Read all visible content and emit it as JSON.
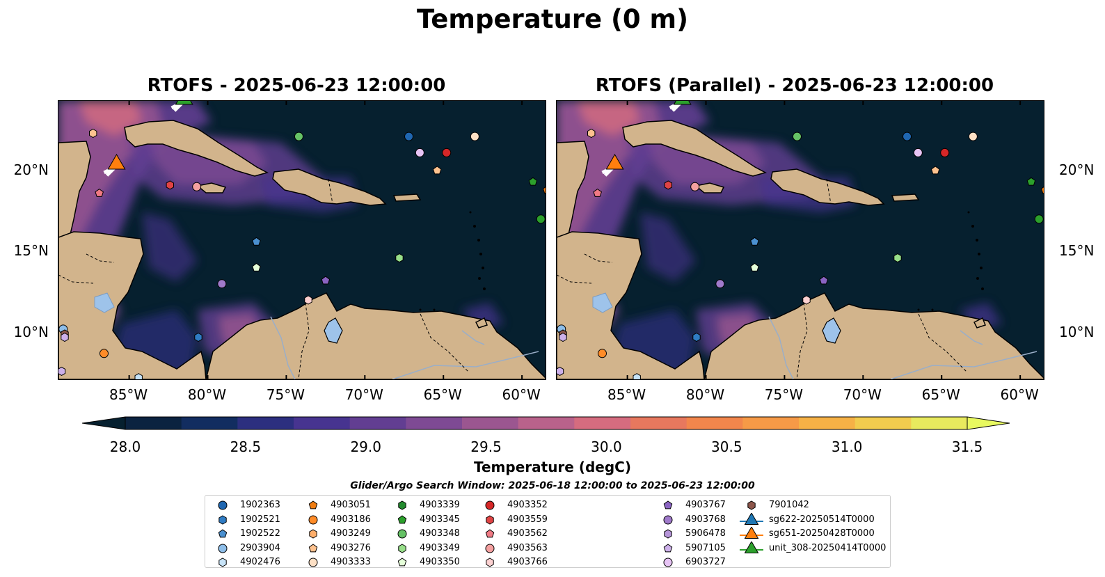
{
  "suptitle": "Temperature (0 m)",
  "panels": [
    {
      "title": "RTOFS - 2025-06-23 12:00:00"
    },
    {
      "title": "RTOFS (Parallel) - 2025-06-23 12:00:00"
    }
  ],
  "lon_ticks": [
    "85°W",
    "80°W",
    "75°W",
    "70°W",
    "65°W",
    "60°W"
  ],
  "lat_ticks": [
    "20°N",
    "15°N",
    "10°N"
  ],
  "colorbar": {
    "label": "Temperature (degC)",
    "ticks": [
      "28.0",
      "28.5",
      "29.0",
      "29.5",
      "30.0",
      "30.5",
      "31.0",
      "31.5"
    ],
    "colors": [
      "#0b2340",
      "#122d60",
      "#2c2f7f",
      "#473490",
      "#623e92",
      "#7e4a94",
      "#9b5690",
      "#b9628b",
      "#d56c7f",
      "#e7785e",
      "#f2864c",
      "#f69a47",
      "#f6b146",
      "#f2cc4e",
      "#e8ea5e"
    ],
    "under_color": "#06202f",
    "over_color": "#e8f960"
  },
  "search_window": "Glider/Argo Search Window: 2025-06-18 12:00:00 to 2025-06-23 12:00:00",
  "legend": [
    {
      "label": "1902363",
      "color": "#1f66b0",
      "marker": "circle"
    },
    {
      "label": "1902521",
      "color": "#2f7cc4",
      "marker": "hexagon"
    },
    {
      "label": "1902522",
      "color": "#4a90d0",
      "marker": "pentagon"
    },
    {
      "label": "2903904",
      "color": "#8dbde8",
      "marker": "circle"
    },
    {
      "label": "4902476",
      "color": "#c7e3f7",
      "marker": "hexagon"
    },
    {
      "label": "4903051",
      "color": "#f07d12",
      "marker": "pentagon"
    },
    {
      "label": "4903186",
      "color": "#ff8c28",
      "marker": "circle"
    },
    {
      "label": "4903249",
      "color": "#fdae6b",
      "marker": "hexagon"
    },
    {
      "label": "4903276",
      "color": "#fdc28f",
      "marker": "pentagon"
    },
    {
      "label": "4903333",
      "color": "#fde0c5",
      "marker": "circle"
    },
    {
      "label": "4903339",
      "color": "#238b2e",
      "marker": "hexagon"
    },
    {
      "label": "4903345",
      "color": "#2ca02c",
      "marker": "pentagon"
    },
    {
      "label": "4903348",
      "color": "#66c266",
      "marker": "circle"
    },
    {
      "label": "4903349",
      "color": "#98df8a",
      "marker": "hexagon"
    },
    {
      "label": "4903350",
      "color": "#e5ffd9",
      "marker": "pentagon"
    },
    {
      "label": "4903352",
      "color": "#d62728",
      "marker": "circle"
    },
    {
      "label": "4903559",
      "color": "#e04344",
      "marker": "hexagon"
    },
    {
      "label": "4903562",
      "color": "#f07a84",
      "marker": "pentagon"
    },
    {
      "label": "4903563",
      "color": "#f4a0a0",
      "marker": "circle"
    },
    {
      "label": "4903766",
      "color": "#fcd1d1",
      "marker": "hexagon"
    },
    {
      "label": "4903767",
      "color": "#8a63c2",
      "marker": "pentagon"
    },
    {
      "label": "4903768",
      "color": "#a07acb",
      "marker": "circle"
    },
    {
      "label": "5906478",
      "color": "#b695d9",
      "marker": "hexagon"
    },
    {
      "label": "5907105",
      "color": "#cdb0ea",
      "marker": "pentagon"
    },
    {
      "label": "6903727",
      "color": "#e7c4f5",
      "marker": "circle"
    },
    {
      "label": "7901042",
      "color": "#8c564b",
      "marker": "hexagon"
    },
    {
      "label": "sg622-20250514T0000",
      "color": "#1f77b4",
      "marker": "triangle"
    },
    {
      "label": "sg651-20250428T0000",
      "color": "#ff7f0e",
      "marker": "triangle"
    },
    {
      "label": "unit_308-20250414T0000",
      "color": "#2ca02c",
      "marker": "triangle"
    }
  ],
  "map_extent": {
    "lon": [
      -89.5,
      -58.5
    ],
    "lat": [
      7.1,
      24.3
    ]
  },
  "floats": [
    {
      "lon": -87.3,
      "lat": 22.3,
      "color": "#fdc28f",
      "marker": "hexagon"
    },
    {
      "lon": -74.2,
      "lat": 22.1,
      "color": "#66c266",
      "marker": "circle"
    },
    {
      "lon": -67.2,
      "lat": 22.1,
      "color": "#1f66b0",
      "marker": "circle"
    },
    {
      "lon": -63.0,
      "lat": 22.1,
      "color": "#fde0c5",
      "marker": "circle"
    },
    {
      "lon": -66.5,
      "lat": 21.1,
      "color": "#e7c4f5",
      "marker": "circle"
    },
    {
      "lon": -64.8,
      "lat": 21.1,
      "color": "#d62728",
      "marker": "circle"
    },
    {
      "lon": -65.4,
      "lat": 20.0,
      "color": "#fdc28f",
      "marker": "pentagon"
    },
    {
      "lon": -86.9,
      "lat": 18.6,
      "color": "#f07a84",
      "marker": "pentagon"
    },
    {
      "lon": -82.4,
      "lat": 19.1,
      "color": "#e04344",
      "marker": "hexagon"
    },
    {
      "lon": -80.7,
      "lat": 19.0,
      "color": "#f4a0a0",
      "marker": "circle"
    },
    {
      "lon": -59.3,
      "lat": 19.3,
      "color": "#2ca02c",
      "marker": "pentagon"
    },
    {
      "lon": -58.4,
      "lat": 18.8,
      "color": "#f07d12",
      "marker": "pentagon"
    },
    {
      "lon": -58.8,
      "lat": 17.0,
      "color": "#2ca02c",
      "marker": "circle"
    },
    {
      "lon": -76.9,
      "lat": 15.6,
      "color": "#4a90d0",
      "marker": "pentagon"
    },
    {
      "lon": -76.9,
      "lat": 14.0,
      "color": "#e5ffd9",
      "marker": "pentagon"
    },
    {
      "lon": -67.8,
      "lat": 14.6,
      "color": "#98df8a",
      "marker": "hexagon"
    },
    {
      "lon": -79.1,
      "lat": 13.0,
      "color": "#a07acb",
      "marker": "circle"
    },
    {
      "lon": -72.5,
      "lat": 13.2,
      "color": "#8a63c2",
      "marker": "pentagon"
    },
    {
      "lon": -73.6,
      "lat": 12.0,
      "color": "#fcd1d1",
      "marker": "hexagon"
    },
    {
      "lon": -89.2,
      "lat": 10.2,
      "color": "#8dbde8",
      "marker": "circle"
    },
    {
      "lon": -89.1,
      "lat": 9.9,
      "color": "#8c564b",
      "marker": "hexagon"
    },
    {
      "lon": -89.1,
      "lat": 9.7,
      "color": "#cdb0ea",
      "marker": "hexagon"
    },
    {
      "lon": -80.6,
      "lat": 9.7,
      "color": "#2f7cc4",
      "marker": "hexagon"
    },
    {
      "lon": -86.6,
      "lat": 8.7,
      "color": "#ff8c28",
      "marker": "circle"
    },
    {
      "lon": -89.3,
      "lat": 7.6,
      "color": "#cdb0ea",
      "marker": "hexagon"
    },
    {
      "lon": -84.4,
      "lat": 7.2,
      "color": "#c7e3f7",
      "marker": "hexagon"
    }
  ],
  "gliders": [
    {
      "lon": -85.8,
      "lat": 20.3,
      "color": "#ff7f0e"
    },
    {
      "lon": -81.5,
      "lat": 24.3,
      "color": "#2ca02c"
    }
  ]
}
